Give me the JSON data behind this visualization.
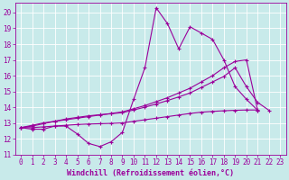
{
  "background_color": "#c8eaea",
  "grid_color": "#b0d0d0",
  "line_color": "#9b009b",
  "xlabel": "Windchill (Refroidissement éolien,°C)",
  "xlabel_fontsize": 6.0,
  "ylabel_values": [
    11,
    12,
    13,
    14,
    15,
    16,
    17,
    18,
    19,
    20
  ],
  "xlim": [
    -0.5,
    23.5
  ],
  "ylim": [
    11,
    20.6
  ],
  "xticks": [
    0,
    1,
    2,
    3,
    4,
    5,
    6,
    7,
    8,
    9,
    10,
    11,
    12,
    13,
    14,
    15,
    16,
    17,
    18,
    19,
    20,
    21,
    22,
    23
  ],
  "xtick_labels": [
    "0",
    "1",
    "2",
    "3",
    "4",
    "5",
    "6",
    "7",
    "8",
    "9",
    "10",
    "11",
    "12",
    "13",
    "14",
    "15",
    "16",
    "17",
    "18",
    "19",
    "20",
    "21",
    "22",
    "23"
  ],
  "series1": [
    12.7,
    12.6,
    12.6,
    12.8,
    12.8,
    12.3,
    11.7,
    11.5,
    11.8,
    12.4,
    14.5,
    16.5,
    20.3,
    19.3,
    17.7,
    19.1,
    18.7,
    18.3,
    17.0,
    15.3,
    14.5,
    13.8
  ],
  "series2": [
    12.7,
    12.7,
    12.75,
    12.8,
    12.85,
    12.9,
    12.93,
    12.95,
    12.97,
    13.0,
    13.1,
    13.2,
    13.3,
    13.4,
    13.5,
    13.6,
    13.68,
    13.73,
    13.77,
    13.8,
    13.82,
    13.82
  ],
  "series3": [
    12.7,
    12.8,
    12.95,
    13.1,
    13.25,
    13.35,
    13.45,
    13.52,
    13.58,
    13.65,
    13.82,
    14.0,
    14.2,
    14.42,
    14.65,
    14.9,
    15.25,
    15.6,
    15.95,
    16.5,
    15.3,
    14.3,
    13.8
  ],
  "series4": [
    12.7,
    12.85,
    13.0,
    13.1,
    13.2,
    13.3,
    13.4,
    13.5,
    13.6,
    13.7,
    13.9,
    14.1,
    14.35,
    14.6,
    14.9,
    15.2,
    15.6,
    16.0,
    16.5,
    16.9,
    17.0,
    13.8
  ],
  "marker": "+",
  "marker_size": 3.5,
  "line_width": 0.8,
  "tick_fontsize": 5.5
}
